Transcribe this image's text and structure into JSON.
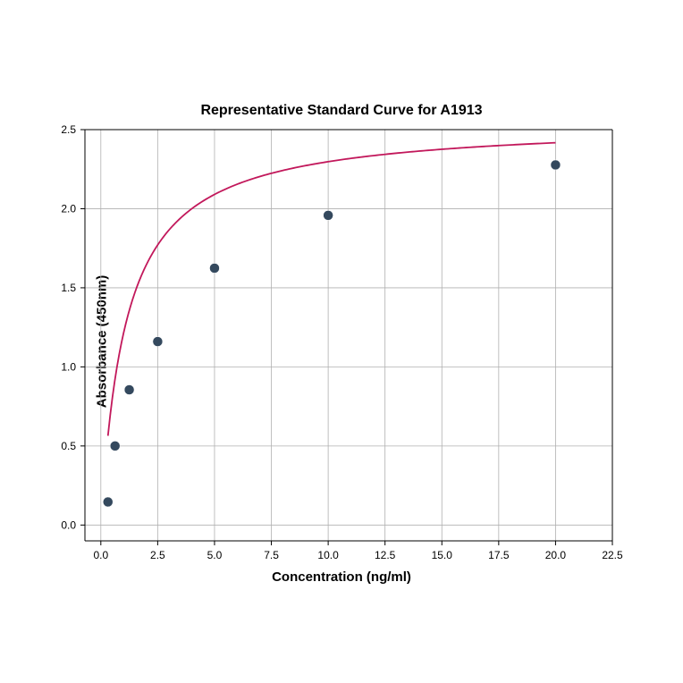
{
  "chart": {
    "type": "scatter",
    "title": "Representative Standard Curve for A1913",
    "title_fontsize": 16,
    "xlabel": "Concentration (ng/ml)",
    "ylabel": "Absorbance (450nm)",
    "label_fontsize": 15,
    "label_fontweight": "bold",
    "background_color": "#ffffff",
    "grid_color": "#b0b0b0",
    "axis_color": "#000000",
    "xlim": [
      -0.7,
      22.5
    ],
    "ylim": [
      -0.1,
      2.5
    ],
    "xticks": [
      0.0,
      2.5,
      5.0,
      7.5,
      10.0,
      12.5,
      15.0,
      17.5,
      20.0,
      22.5
    ],
    "yticks": [
      0.0,
      0.5,
      1.0,
      1.5,
      2.0,
      2.5
    ],
    "xtick_labels": [
      "0.0",
      "2.5",
      "5.0",
      "7.5",
      "10.0",
      "12.5",
      "15.0",
      "17.5",
      "20.0",
      "22.5"
    ],
    "ytick_labels": [
      "0.0",
      "0.5",
      "1.0",
      "1.5",
      "2.0",
      "2.5"
    ],
    "tick_fontsize": 12,
    "grid": true,
    "data_points": [
      {
        "x": 0.3125,
        "y": 0.146
      },
      {
        "x": 0.625,
        "y": 0.5
      },
      {
        "x": 1.25,
        "y": 0.855
      },
      {
        "x": 2.5,
        "y": 1.16
      },
      {
        "x": 5.0,
        "y": 1.624
      },
      {
        "x": 10.0,
        "y": 1.958
      },
      {
        "x": 20.0,
        "y": 2.277
      }
    ],
    "marker_color": "#34495e",
    "marker_edge_color": "#34495e",
    "marker_size": 5.5,
    "curve_color": "#c2185b",
    "curve_width": 1.8,
    "curve_params": {
      "a": 2.55,
      "b": 1.1,
      "c": 0.0
    }
  }
}
